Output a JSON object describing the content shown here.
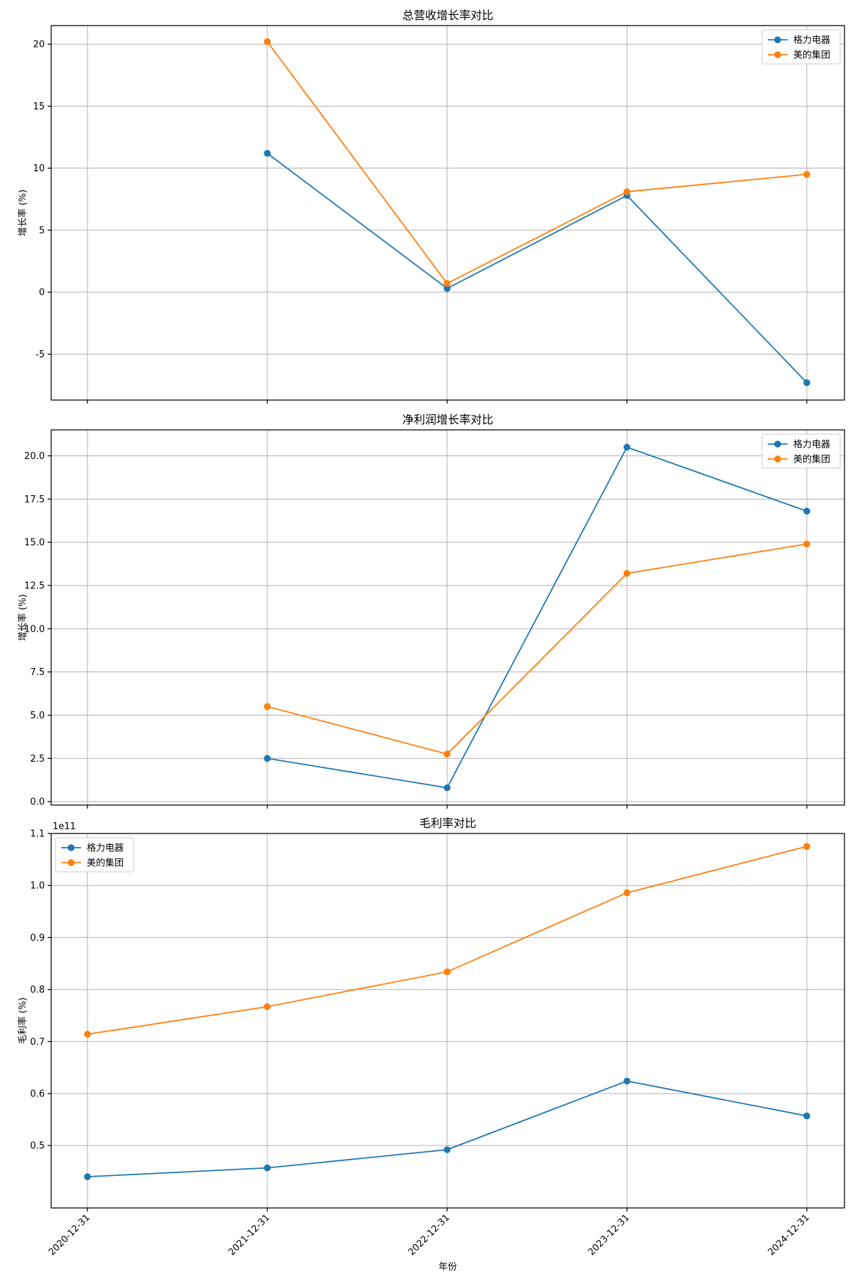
{
  "chart_data": [
    {
      "type": "line",
      "title": "总营收增长率对比",
      "xlabel": "",
      "ylabel": "增长率 (%)",
      "categories": [
        "2020-12-31",
        "2021-12-31",
        "2022-12-31",
        "2023-12-31",
        "2024-12-31"
      ],
      "series": [
        {
          "name": "格力电器",
          "color": "#1f77b4",
          "values": [
            null,
            11.2,
            0.3,
            7.8,
            -7.3
          ]
        },
        {
          "name": "美的集团",
          "color": "#ff7f0e",
          "values": [
            null,
            20.2,
            0.7,
            8.1,
            9.5
          ]
        }
      ],
      "ylim": [
        -8.7,
        21.5
      ],
      "yticks": [
        -5,
        0,
        5,
        10,
        15,
        20
      ],
      "ytick_labels": [
        "-5",
        "0",
        "5",
        "10",
        "15",
        "20"
      ],
      "grid": true,
      "legend": "upper-right"
    },
    {
      "type": "line",
      "title": "净利润增长率对比",
      "xlabel": "",
      "ylabel": "增长率 (%)",
      "categories": [
        "2020-12-31",
        "2021-12-31",
        "2022-12-31",
        "2023-12-31",
        "2024-12-31"
      ],
      "series": [
        {
          "name": "格力电器",
          "color": "#1f77b4",
          "values": [
            null,
            2.5,
            0.8,
            20.5,
            16.8
          ]
        },
        {
          "name": "美的集团",
          "color": "#ff7f0e",
          "values": [
            null,
            5.5,
            2.75,
            13.2,
            14.9
          ]
        }
      ],
      "ylim": [
        -0.2,
        21.5
      ],
      "yticks": [
        0,
        2.5,
        5,
        7.5,
        10,
        12.5,
        15,
        17.5,
        20
      ],
      "ytick_labels": [
        "0.0",
        "2.5",
        "5.0",
        "7.5",
        "10.0",
        "12.5",
        "15.0",
        "17.5",
        "20.0"
      ],
      "grid": true,
      "legend": "upper-right"
    },
    {
      "type": "line",
      "title": "毛利率对比",
      "xlabel": "年份",
      "ylabel": "毛利率 (%)",
      "y_offset_label": "1e11",
      "categories": [
        "2020-12-31",
        "2021-12-31",
        "2022-12-31",
        "2023-12-31",
        "2024-12-31"
      ],
      "series": [
        {
          "name": "格力电器",
          "color": "#1f77b4",
          "values": [
            0.44,
            0.457,
            0.492,
            0.624,
            0.557
          ]
        },
        {
          "name": "美的集团",
          "color": "#ff7f0e",
          "values": [
            0.714,
            0.767,
            0.834,
            0.986,
            1.075
          ]
        }
      ],
      "ylim": [
        0.38,
        1.1
      ],
      "yticks": [
        0.5,
        0.6,
        0.7,
        0.8,
        0.9,
        1.0,
        1.1
      ],
      "ytick_labels": [
        "0.5",
        "0.6",
        "0.7",
        "0.8",
        "0.9",
        "1.0",
        "1.1"
      ],
      "grid": true,
      "legend": "upper-left"
    }
  ]
}
